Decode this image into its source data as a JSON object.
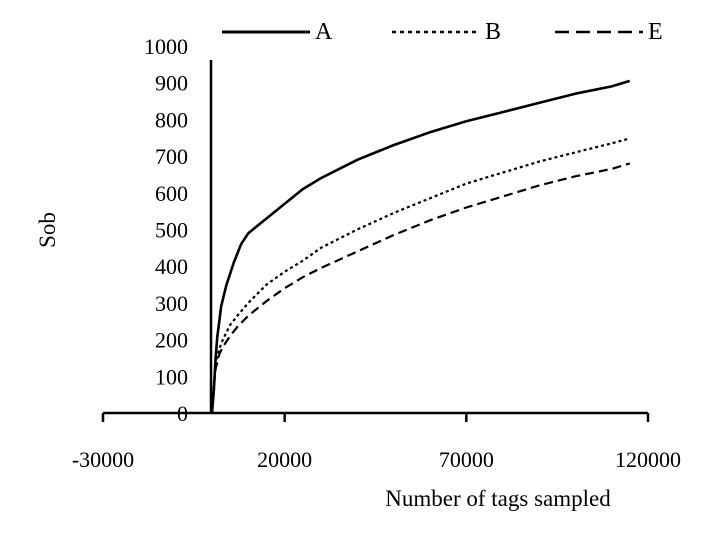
{
  "chart_data": {
    "type": "line",
    "title": "",
    "xlabel": "Number of tags sampled",
    "ylabel": "Sob",
    "xlim": [
      -30000,
      120000
    ],
    "ylim": [
      0,
      1000
    ],
    "xticks": [
      -30000,
      20000,
      70000,
      120000
    ],
    "yticks": [
      0,
      100,
      200,
      300,
      400,
      500,
      600,
      700,
      800,
      900,
      1000
    ],
    "grid": false,
    "legend_position": "top",
    "series": [
      {
        "name": "A",
        "style": "solid",
        "x": [
          0,
          500,
          1000,
          1500,
          2000,
          2500,
          3000,
          4000,
          5000,
          6000,
          8000,
          10000,
          15000,
          20000,
          25000,
          30000,
          40000,
          50000,
          60000,
          70000,
          80000,
          90000,
          100000,
          110000,
          115000
        ],
        "y": [
          0,
          60,
          150,
          210,
          250,
          290,
          310,
          350,
          380,
          410,
          460,
          490,
          530,
          570,
          610,
          640,
          690,
          730,
          765,
          795,
          820,
          845,
          870,
          890,
          905
        ]
      },
      {
        "name": "B",
        "style": "dotted",
        "x": [
          0,
          500,
          1000,
          2000,
          3000,
          4000,
          5000,
          7000,
          10000,
          15000,
          20000,
          25000,
          30000,
          40000,
          50000,
          60000,
          70000,
          80000,
          90000,
          100000,
          110000,
          115000
        ],
        "y": [
          0,
          80,
          130,
          175,
          200,
          220,
          240,
          265,
          300,
          350,
          385,
          415,
          450,
          500,
          545,
          585,
          625,
          655,
          685,
          710,
          735,
          748
        ]
      },
      {
        "name": "E",
        "style": "dashed",
        "x": [
          0,
          500,
          1000,
          2000,
          3000,
          4000,
          5000,
          7000,
          10000,
          15000,
          20000,
          25000,
          30000,
          40000,
          50000,
          60000,
          70000,
          80000,
          90000,
          100000,
          110000,
          115000
        ],
        "y": [
          0,
          70,
          120,
          160,
          180,
          195,
          210,
          235,
          265,
          305,
          340,
          370,
          395,
          440,
          485,
          525,
          560,
          590,
          620,
          645,
          665,
          680
        ]
      }
    ]
  }
}
